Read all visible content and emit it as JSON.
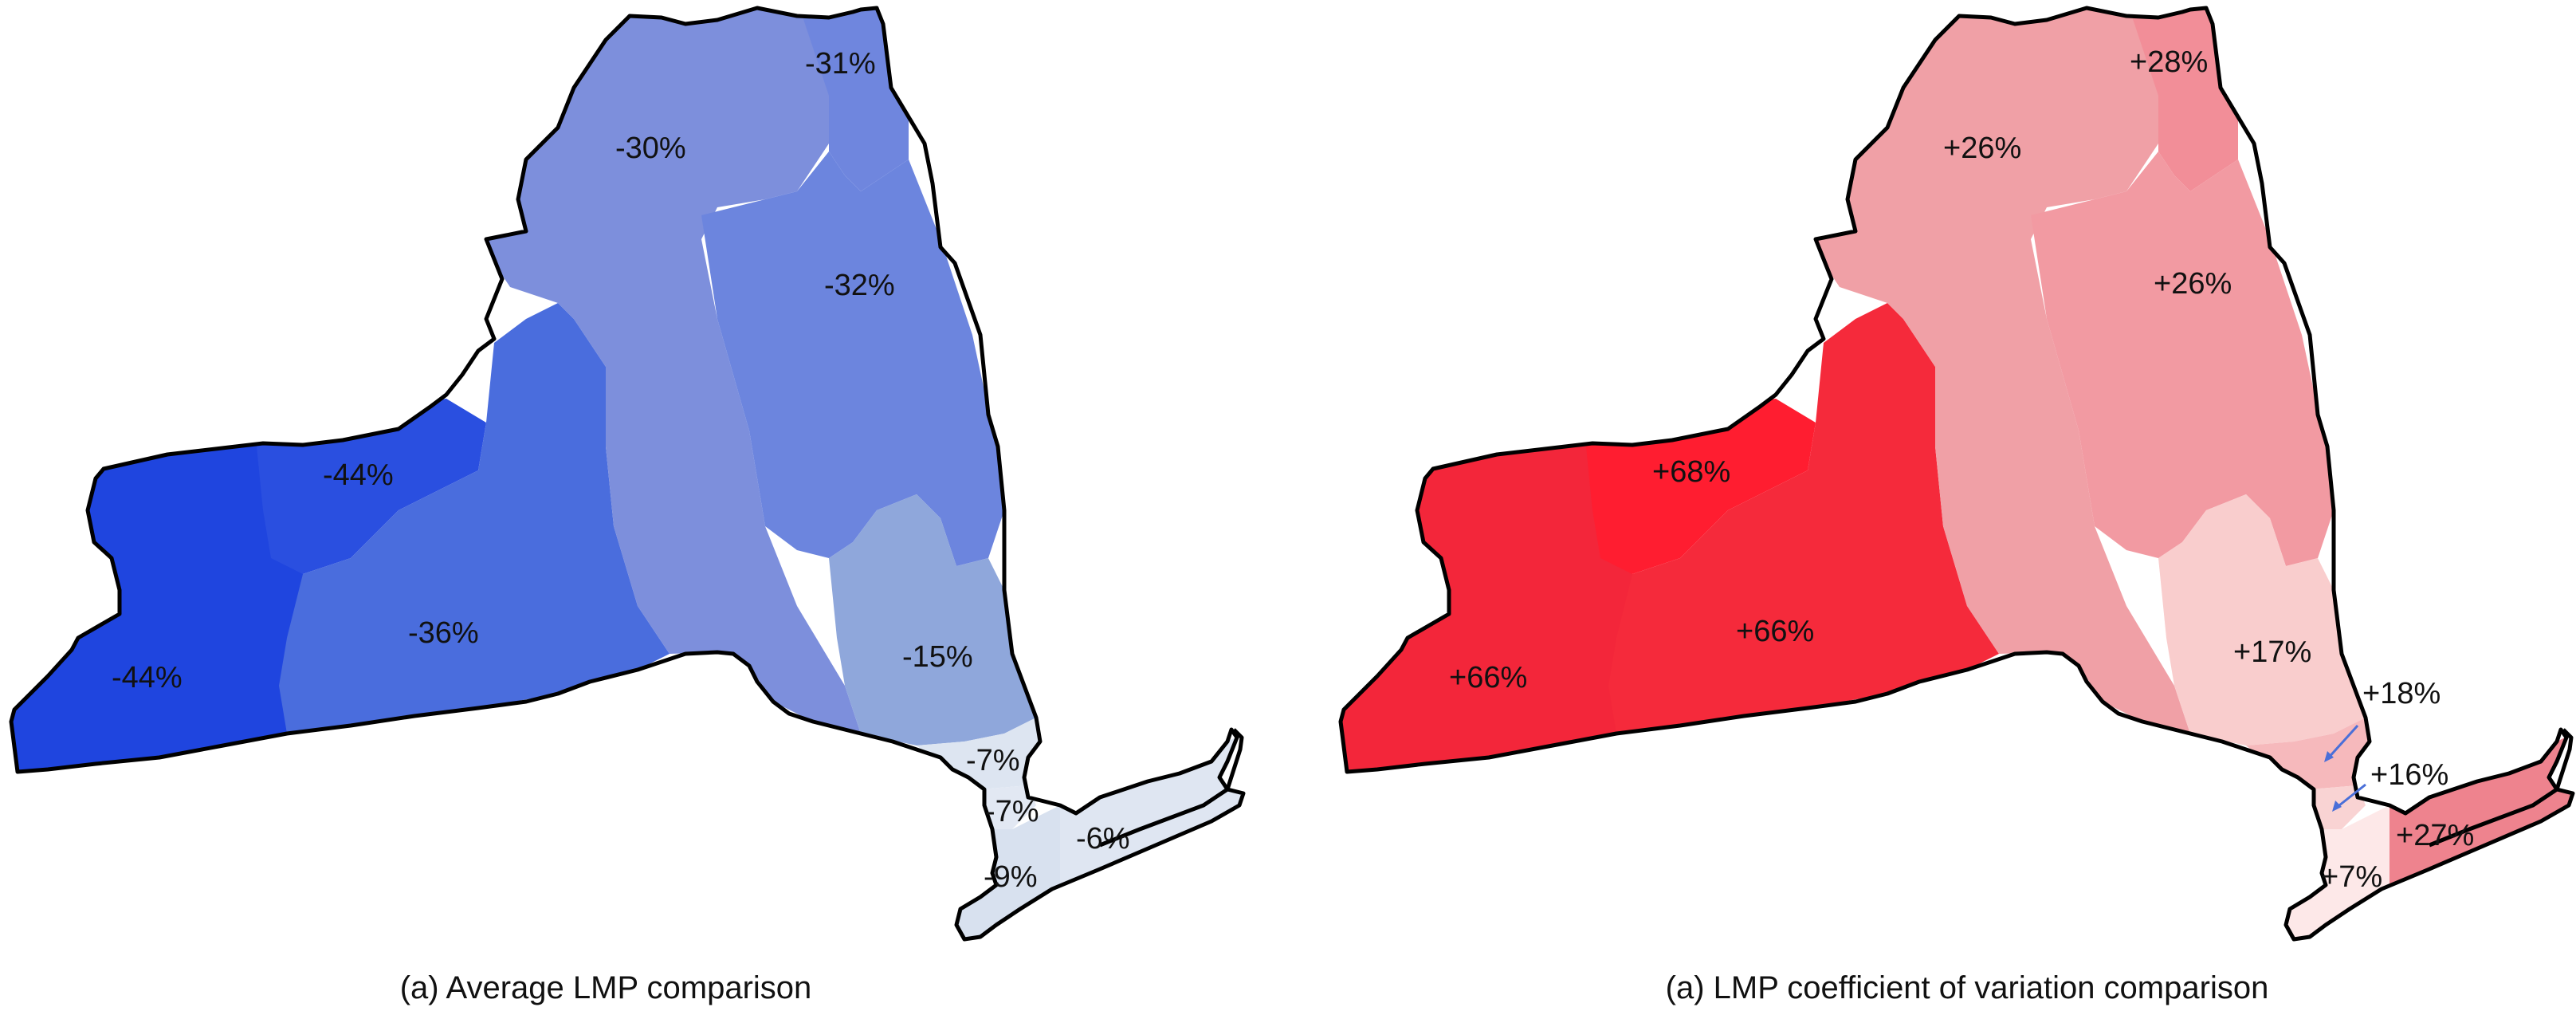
{
  "maps": [
    {
      "caption": "(a) Average LMP comparison",
      "zones": [
        {
          "id": "A",
          "label": "-44%",
          "color": "#1f45df"
        },
        {
          "id": "B",
          "label": "-44%",
          "color": "#2a4fe0"
        },
        {
          "id": "C",
          "label": "-36%",
          "color": "#4a6ddd"
        },
        {
          "id": "D",
          "label": "-31%",
          "color": "#6f86de"
        },
        {
          "id": "E",
          "label": "-30%",
          "color": "#7d8fdc"
        },
        {
          "id": "F",
          "label": "-32%",
          "color": "#6c85de"
        },
        {
          "id": "G",
          "label": "-15%",
          "color": "#8fa7db"
        },
        {
          "id": "H",
          "label": "-7%",
          "color": "#dde5f1"
        },
        {
          "id": "I",
          "label": "-7%",
          "color": "#e2e8f3"
        },
        {
          "id": "J",
          "label": "-9%",
          "color": "#d8e1ef"
        },
        {
          "id": "K",
          "label": "-6%",
          "color": "#dfe6f2"
        }
      ]
    },
    {
      "caption": "(a) LMP coefficient of variation comparison",
      "zones": [
        {
          "id": "A",
          "label": "+66%",
          "color": "#f3263a"
        },
        {
          "id": "B",
          "label": "+68%",
          "color": "#ff1d30"
        },
        {
          "id": "C",
          "label": "+66%",
          "color": "#f52a3b"
        },
        {
          "id": "D",
          "label": "+28%",
          "color": "#f28e98"
        },
        {
          "id": "E",
          "label": "+26%",
          "color": "#f0a0a6"
        },
        {
          "id": "F",
          "label": "+26%",
          "color": "#f29aa2"
        },
        {
          "id": "G",
          "label": "+17%",
          "color": "#f9cdcd"
        },
        {
          "id": "H",
          "label": "+18%",
          "color": "#f6b9bc"
        },
        {
          "id": "I",
          "label": "+16%",
          "color": "#f9d3d3"
        },
        {
          "id": "J",
          "label": "+7%",
          "color": "#fde8e8"
        },
        {
          "id": "K",
          "label": "+27%",
          "color": "#ee838e"
        }
      ]
    }
  ]
}
